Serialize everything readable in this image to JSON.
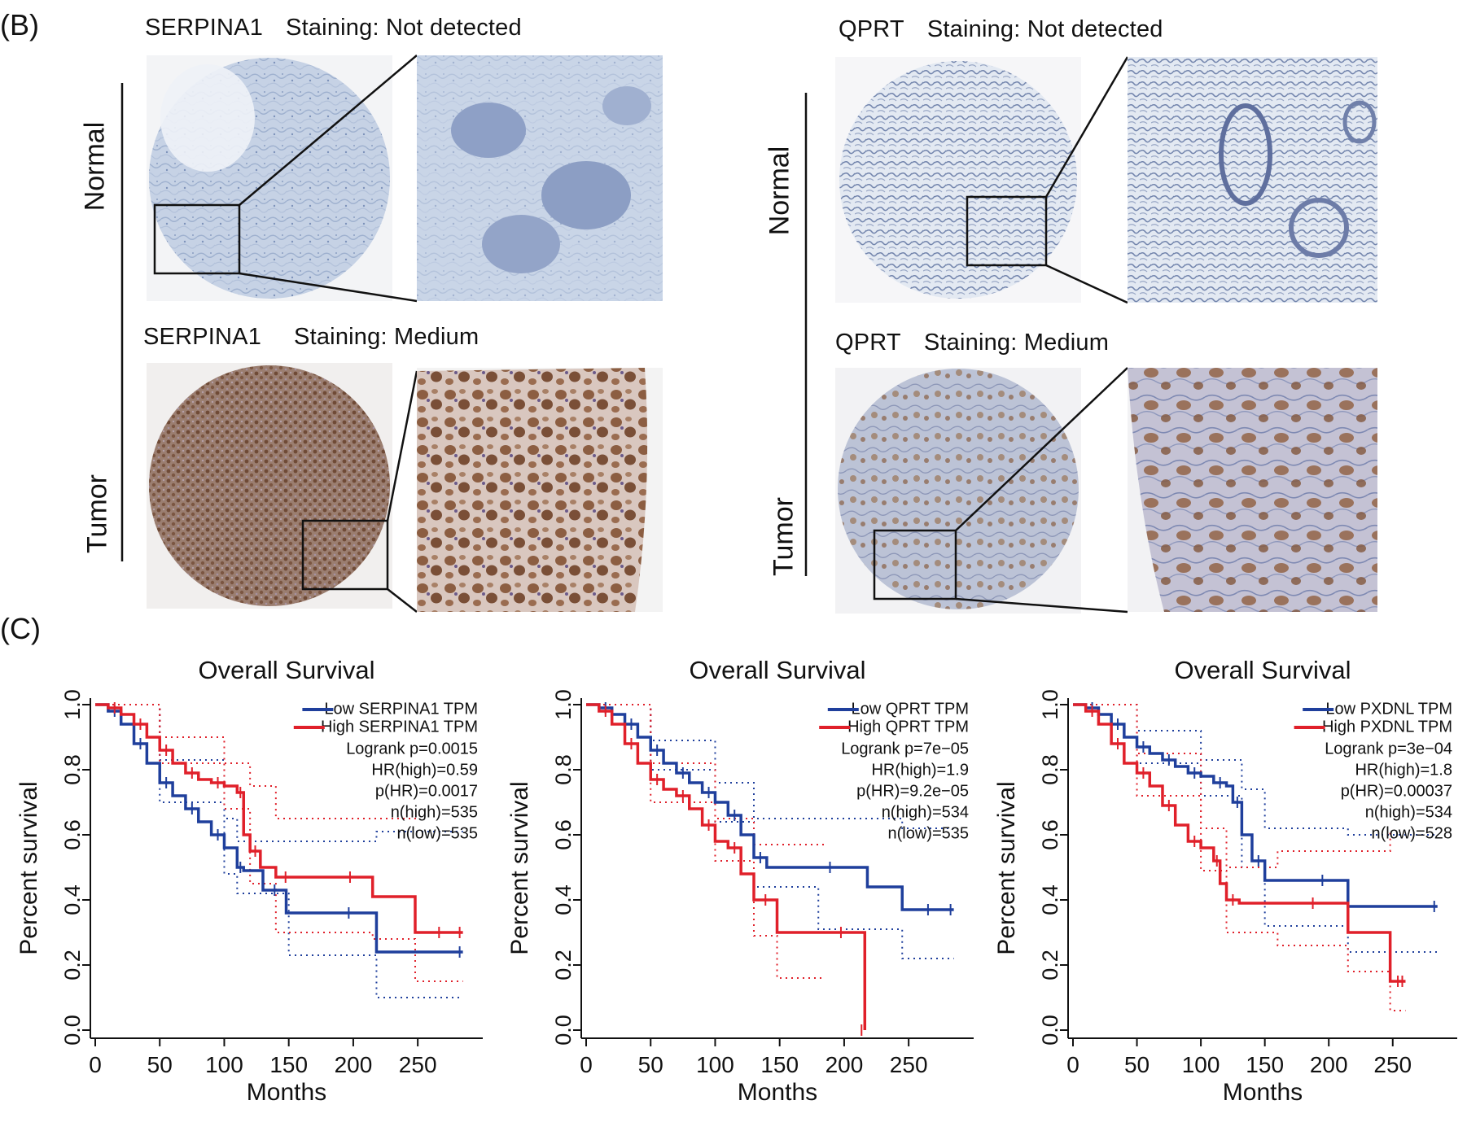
{
  "panel_b": {
    "label": "(B)",
    "row_labels": {
      "normal": "Normal",
      "tumor": "Tumor"
    },
    "serpina1": {
      "normal_title": {
        "gene": "SERPINA1",
        "staining": "Staining: Not detected"
      },
      "tumor_title": {
        "gene": "SERPINA1",
        "staining": "Staining: Medium"
      }
    },
    "qprt": {
      "normal_title": {
        "gene": "QPRT",
        "staining": "Staining: Not detected"
      },
      "tumor_title": {
        "gene": "QPRT",
        "staining": "Staining: Medium"
      }
    }
  },
  "panel_c": {
    "label": "(C)"
  },
  "colors": {
    "low": "#1f3f9c",
    "high": "#e0202a",
    "normal_tissue": "#c8d3e6",
    "tumor_tissue": "#8a6a58"
  },
  "chart_data": [
    {
      "type": "line",
      "title": "Overall Survival",
      "xlabel": "Months",
      "ylabel": "Percent survival",
      "xlim": [
        0,
        285
      ],
      "ylim": [
        0,
        1
      ],
      "x_ticks": [
        "0",
        "50",
        "100",
        "150",
        "200",
        "250"
      ],
      "y_ticks": [
        "0.0",
        "0.2",
        "0.4",
        "0.6",
        "0.8",
        "1.0"
      ],
      "legend": [
        "Low SERPINA1 TPM",
        "High SERPINA1 TPM"
      ],
      "stats": [
        "Logrank p=0.0015",
        "HR(high)=0.59",
        "p(HR)=0.0017",
        "n(high)=535",
        "n(low)=535"
      ],
      "series": [
        {
          "name": "Low SERPINA1 TPM",
          "color": "low",
          "x": [
            0,
            10,
            20,
            30,
            40,
            50,
            60,
            70,
            80,
            90,
            100,
            110,
            115,
            130,
            148,
            175,
            218,
            285
          ],
          "y": [
            1.0,
            0.98,
            0.94,
            0.88,
            0.82,
            0.76,
            0.72,
            0.68,
            0.64,
            0.6,
            0.56,
            0.5,
            0.49,
            0.43,
            0.36,
            0.36,
            0.24,
            0.24
          ]
        },
        {
          "name": "High SERPINA1 TPM",
          "color": "high",
          "x": [
            0,
            10,
            20,
            30,
            40,
            50,
            60,
            70,
            80,
            90,
            100,
            110,
            115,
            120,
            128,
            140,
            155,
            180,
            215,
            248,
            285
          ],
          "y": [
            1.0,
            0.99,
            0.97,
            0.94,
            0.9,
            0.86,
            0.82,
            0.79,
            0.77,
            0.76,
            0.75,
            0.73,
            0.6,
            0.55,
            0.5,
            0.47,
            0.47,
            0.47,
            0.41,
            0.3,
            0.3
          ]
        }
      ],
      "ci": [
        {
          "color": "low",
          "end": 285,
          "upper": [
            [
              0,
              1.0
            ],
            [
              50,
              0.83
            ],
            [
              100,
              0.65
            ],
            [
              110,
              0.58
            ],
            [
              150,
              0.58
            ],
            [
              218,
              0.61
            ],
            [
              285,
              0.61
            ]
          ],
          "lower": [
            [
              0,
              1.0
            ],
            [
              50,
              0.7
            ],
            [
              100,
              0.48
            ],
            [
              110,
              0.42
            ],
            [
              150,
              0.23
            ],
            [
              218,
              0.1
            ],
            [
              285,
              0.1
            ]
          ]
        },
        {
          "color": "high",
          "end": 285,
          "upper": [
            [
              0,
              1.0
            ],
            [
              50,
              0.9
            ],
            [
              100,
              0.82
            ],
            [
              120,
              0.75
            ],
            [
              140,
              0.65
            ],
            [
              215,
              0.65
            ],
            [
              248,
              0.64
            ]
          ],
          "lower": [
            [
              0,
              1.0
            ],
            [
              50,
              0.82
            ],
            [
              100,
              0.68
            ],
            [
              120,
              0.45
            ],
            [
              140,
              0.3
            ],
            [
              215,
              0.28
            ],
            [
              248,
              0.15
            ],
            [
              285,
              0.15
            ]
          ]
        }
      ]
    },
    {
      "type": "line",
      "title": "Overall Survival",
      "xlabel": "Months",
      "ylabel": "Percent survival",
      "xlim": [
        0,
        285
      ],
      "ylim": [
        0,
        1
      ],
      "x_ticks": [
        "0",
        "50",
        "100",
        "150",
        "200",
        "250"
      ],
      "y_ticks": [
        "0.0",
        "0.2",
        "0.4",
        "0.6",
        "0.8",
        "1.0"
      ],
      "legend": [
        "Low QPRT TPM",
        "High QPRT TPM"
      ],
      "stats": [
        "Logrank p=7e−05",
        "HR(high)=1.9",
        "p(HR)=9.2e−05",
        "n(high)=534",
        "n(low)=535"
      ],
      "series": [
        {
          "name": "Low QPRT TPM",
          "color": "low",
          "x": [
            0,
            10,
            20,
            30,
            40,
            50,
            60,
            70,
            80,
            90,
            100,
            110,
            120,
            130,
            140,
            160,
            218,
            245,
            285
          ],
          "y": [
            1.0,
            0.99,
            0.97,
            0.94,
            0.9,
            0.86,
            0.82,
            0.79,
            0.76,
            0.73,
            0.7,
            0.66,
            0.6,
            0.53,
            0.5,
            0.5,
            0.44,
            0.37,
            0.37
          ]
        },
        {
          "name": "High QPRT TPM",
          "color": "high",
          "x": [
            0,
            10,
            20,
            30,
            40,
            50,
            60,
            70,
            80,
            90,
            100,
            110,
            120,
            130,
            148,
            180,
            215,
            216
          ],
          "y": [
            1.0,
            0.98,
            0.94,
            0.88,
            0.82,
            0.77,
            0.74,
            0.72,
            0.68,
            0.63,
            0.58,
            0.56,
            0.48,
            0.4,
            0.3,
            0.3,
            0.3,
            0.0
          ]
        }
      ],
      "ci": [
        {
          "color": "low",
          "end": 285,
          "upper": [
            [
              0,
              1.0
            ],
            [
              50,
              0.89
            ],
            [
              100,
              0.76
            ],
            [
              130,
              0.65
            ],
            [
              180,
              0.65
            ],
            [
              245,
              0.62
            ],
            [
              285,
              0.62
            ]
          ],
          "lower": [
            [
              0,
              1.0
            ],
            [
              50,
              0.8
            ],
            [
              100,
              0.64
            ],
            [
              130,
              0.44
            ],
            [
              180,
              0.31
            ],
            [
              245,
              0.22
            ],
            [
              285,
              0.22
            ]
          ]
        },
        {
          "color": "high",
          "end": 185,
          "upper": [
            [
              0,
              1.0
            ],
            [
              50,
              0.82
            ],
            [
              100,
              0.65
            ],
            [
              130,
              0.57
            ],
            [
              185,
              0.57
            ]
          ],
          "lower": [
            [
              0,
              1.0
            ],
            [
              50,
              0.7
            ],
            [
              100,
              0.52
            ],
            [
              130,
              0.29
            ],
            [
              148,
              0.16
            ],
            [
              185,
              0.16
            ]
          ]
        }
      ]
    },
    {
      "type": "line",
      "title": "Overall Survival",
      "xlabel": "Months",
      "ylabel": "Percent survival",
      "xlim": [
        0,
        285
      ],
      "ylim": [
        0,
        1
      ],
      "x_ticks": [
        "0",
        "50",
        "100",
        "150",
        "200",
        "250"
      ],
      "y_ticks": [
        "0.0",
        "0.2",
        "0.4",
        "0.6",
        "0.8",
        "1.0"
      ],
      "legend": [
        "Low PXDNL TPM",
        "High PXDNL TPM"
      ],
      "stats": [
        "Logrank p=3e−04",
        "HR(high)=1.8",
        "p(HR)=0.00037",
        "n(high)=534",
        "n(low)=528"
      ],
      "series": [
        {
          "name": "Low PXDNL TPM",
          "color": "low",
          "x": [
            0,
            10,
            20,
            30,
            40,
            50,
            60,
            70,
            80,
            90,
            100,
            110,
            120,
            125,
            132,
            140,
            150,
            175,
            215,
            285
          ],
          "y": [
            1.0,
            0.99,
            0.97,
            0.94,
            0.9,
            0.87,
            0.85,
            0.83,
            0.81,
            0.79,
            0.78,
            0.76,
            0.75,
            0.7,
            0.6,
            0.52,
            0.46,
            0.46,
            0.38,
            0.38
          ]
        },
        {
          "name": "High PXDNL TPM",
          "color": "high",
          "x": [
            0,
            10,
            20,
            30,
            40,
            50,
            60,
            70,
            80,
            90,
            100,
            110,
            115,
            120,
            130,
            160,
            215,
            248,
            260
          ],
          "y": [
            1.0,
            0.98,
            0.94,
            0.88,
            0.82,
            0.79,
            0.75,
            0.69,
            0.63,
            0.58,
            0.56,
            0.52,
            0.45,
            0.4,
            0.39,
            0.39,
            0.3,
            0.15,
            0.15
          ]
        }
      ],
      "ci": [
        {
          "color": "low",
          "end": 285,
          "upper": [
            [
              0,
              1.0
            ],
            [
              50,
              0.92
            ],
            [
              100,
              0.83
            ],
            [
              132,
              0.74
            ],
            [
              150,
              0.62
            ],
            [
              215,
              0.6
            ],
            [
              285,
              0.6
            ]
          ],
          "lower": [
            [
              0,
              1.0
            ],
            [
              50,
              0.82
            ],
            [
              100,
              0.72
            ],
            [
              132,
              0.5
            ],
            [
              150,
              0.32
            ],
            [
              215,
              0.24
            ],
            [
              285,
              0.24
            ]
          ]
        },
        {
          "color": "high",
          "end": 260,
          "upper": [
            [
              0,
              1.0
            ],
            [
              50,
              0.85
            ],
            [
              100,
              0.62
            ],
            [
              120,
              0.5
            ],
            [
              160,
              0.55
            ],
            [
              215,
              0.55
            ],
            [
              248,
              0.61
            ]
          ],
          "lower": [
            [
              0,
              1.0
            ],
            [
              50,
              0.72
            ],
            [
              100,
              0.49
            ],
            [
              120,
              0.3
            ],
            [
              160,
              0.26
            ],
            [
              215,
              0.18
            ],
            [
              248,
              0.06
            ],
            [
              260,
              0.06
            ]
          ]
        }
      ]
    }
  ]
}
